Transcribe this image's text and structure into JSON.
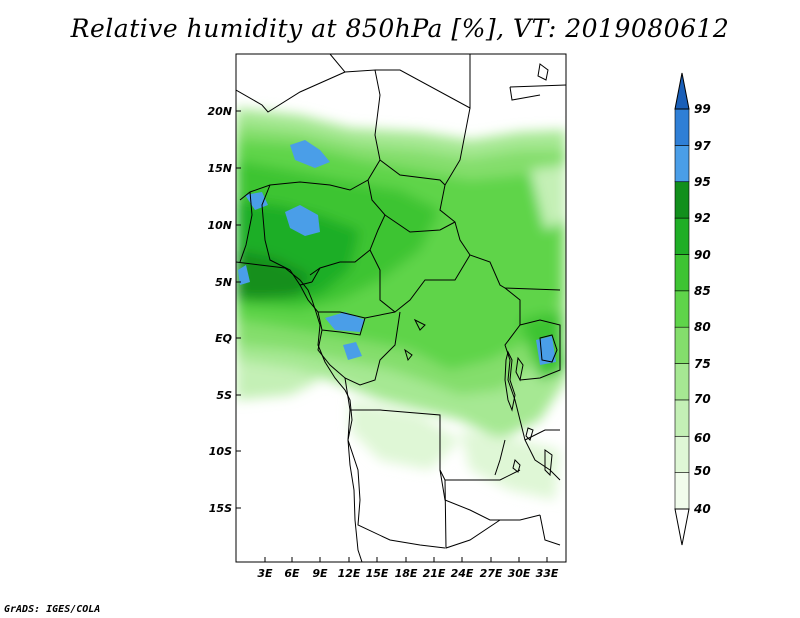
{
  "title": "Relative humidity at 850hPa [%], VT: 2019080612",
  "footer": "GrADS: IGES/COLA",
  "lat_labels": [
    "20N",
    "15N",
    "10N",
    "5N",
    "EQ",
    "5S",
    "10S",
    "15S"
  ],
  "lon_labels": [
    "3E",
    "6E",
    "9E",
    "12E",
    "15E",
    "18E",
    "21E",
    "24E",
    "27E",
    "30E",
    "33E"
  ],
  "colorbar": {
    "levels": [
      "40",
      "50",
      "60",
      "70",
      "75",
      "80",
      "85",
      "90",
      "92",
      "95",
      "97",
      "99"
    ],
    "colors": [
      "#f1fcec",
      "#dff7d6",
      "#c4f0b6",
      "#a6e893",
      "#84de6c",
      "#5fd44a",
      "#3ec433",
      "#1fae26",
      "#128f1c",
      "#4a9ee8",
      "#2f7fd6",
      "#1a5fb8"
    ]
  }
}
